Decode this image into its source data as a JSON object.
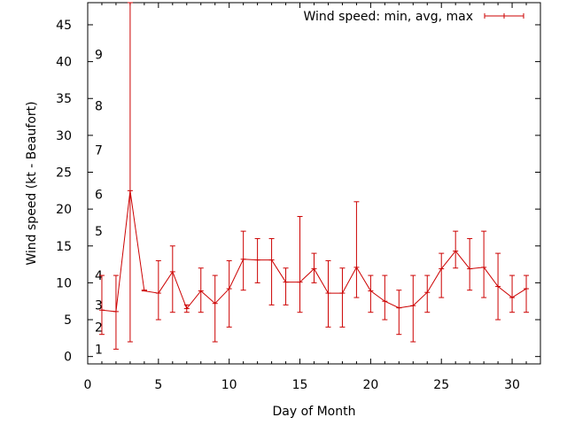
{
  "chart_data": {
    "type": "line",
    "title": "",
    "xlabel": "Day of Month",
    "ylabel": "Wind speed (kt - Beaufort)",
    "xlim": [
      0,
      32
    ],
    "ylim": [
      -1,
      48
    ],
    "x_ticks": [
      0,
      5,
      10,
      15,
      20,
      25,
      30
    ],
    "y_ticks": [
      0,
      5,
      10,
      15,
      20,
      25,
      30,
      35,
      40,
      45
    ],
    "beaufort_labels": [
      {
        "label": "1",
        "y": 1
      },
      {
        "label": "2",
        "y": 4
      },
      {
        "label": "3",
        "y": 7
      },
      {
        "label": "4",
        "y": 11
      },
      {
        "label": "5",
        "y": 17
      },
      {
        "label": "6",
        "y": 22
      },
      {
        "label": "7",
        "y": 28
      },
      {
        "label": "8",
        "y": 34
      },
      {
        "label": "9",
        "y": 41
      }
    ],
    "grid": false,
    "legend": {
      "position": "top-right",
      "entries": [
        "Wind speed: min, avg, max"
      ]
    },
    "series": [
      {
        "name": "Wind speed: min, avg, max",
        "color": "#cc0000",
        "x": [
          1,
          2,
          3,
          4,
          5,
          6,
          7,
          8,
          9,
          10,
          11,
          12,
          13,
          14,
          15,
          16,
          17,
          18,
          19,
          20,
          21,
          22,
          23,
          24,
          25,
          26,
          27,
          28,
          29,
          30,
          31
        ],
        "avg": [
          6.3,
          6.1,
          22.5,
          8.9,
          8.6,
          11.5,
          6.5,
          8.9,
          7.2,
          9.2,
          13.2,
          13.1,
          13.1,
          10.1,
          10.1,
          11.9,
          8.6,
          8.6,
          12.1,
          8.9,
          7.5,
          6.6,
          6.9,
          8.7,
          11.9,
          14.3,
          11.9,
          12.1,
          9.5,
          8.0,
          9.2
        ],
        "min": [
          3,
          1,
          2,
          9,
          5,
          6,
          6,
          6,
          2,
          4,
          9,
          10,
          7,
          7,
          6,
          10,
          4,
          4,
          8,
          6,
          5,
          3,
          2,
          6,
          8,
          12,
          9,
          8,
          5,
          6,
          6
        ],
        "max": [
          11,
          11,
          48,
          9,
          13,
          15,
          7,
          12,
          11,
          13,
          17,
          16,
          16,
          12,
          19,
          14,
          13,
          12,
          21,
          11,
          11,
          9,
          11,
          11,
          14,
          17,
          16,
          17,
          14,
          11,
          11
        ]
      }
    ]
  }
}
